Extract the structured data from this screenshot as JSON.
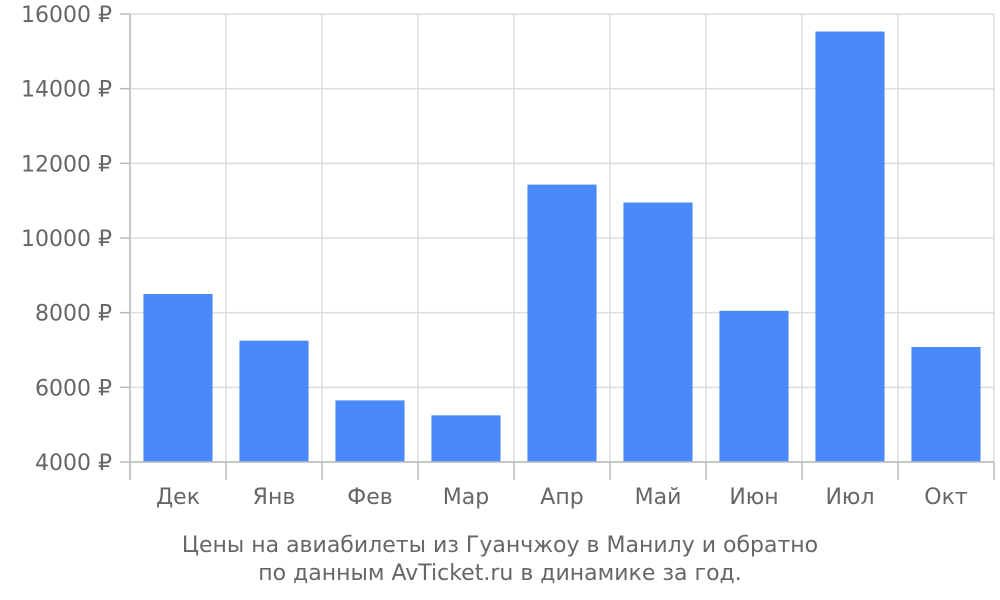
{
  "chart_data": {
    "type": "bar",
    "title": "",
    "xlabel": "",
    "ylabel": "",
    "categories": [
      "Дек",
      "Янв",
      "Фев",
      "Мар",
      "Апр",
      "Май",
      "Июн",
      "Июл",
      "Окт"
    ],
    "values": [
      8500,
      7250,
      5650,
      5250,
      11430,
      10950,
      8050,
      15530,
      7080
    ],
    "ylim": [
      4000,
      16000
    ],
    "y_ticks": [
      4000,
      6000,
      8000,
      10000,
      12000,
      14000,
      16000
    ],
    "y_tick_labels": [
      "4000 ₽",
      "6000 ₽",
      "8000 ₽",
      "10000 ₽",
      "12000 ₽",
      "14000 ₽",
      "16000 ₽"
    ],
    "grid": true,
    "bar_color": "#4a89f9",
    "grid_color": "#dddddd",
    "axis_color": "#bbbbbb"
  },
  "caption": {
    "line1": "Цены на авиабилеты из Гуанчжоу в Манилу и обратно",
    "line2": "по данным AvTicket.ru в динамике за год."
  }
}
